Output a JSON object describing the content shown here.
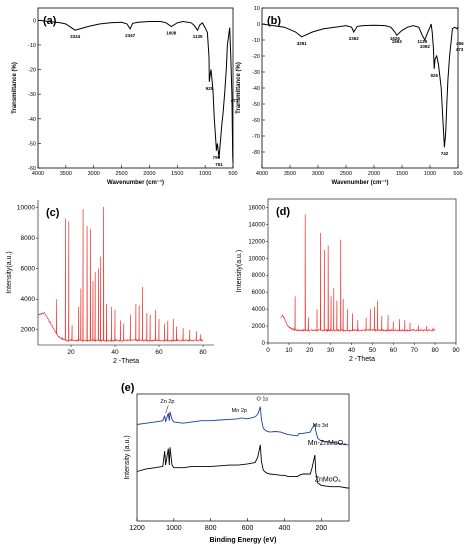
{
  "chart_data": [
    {
      "panel": "(a)",
      "type": "line",
      "xlabel": "Wavenumber (cm⁻¹)",
      "ylabel": "Transmittance (%)",
      "xlim": [
        4000,
        500
      ],
      "ylim": [
        -60,
        5
      ],
      "x_ticks": [
        "4000",
        "3500",
        "3000",
        "2500",
        "2000",
        "1500",
        "1000",
        "500"
      ],
      "y_ticks": [
        "0",
        "-10",
        "-20",
        "-30",
        "-40",
        "-50",
        "-60"
      ],
      "series": [
        {
          "color": "#000000",
          "x": [
            4000,
            3800,
            3600,
            3500,
            3400,
            3334,
            3250,
            3100,
            2900,
            2700,
            2500,
            2400,
            2347,
            2300,
            2200,
            2000,
            1800,
            1700,
            1608,
            1500,
            1400,
            1250,
            1200,
            1135,
            1100,
            1050,
            1000,
            960,
            930,
            925,
            910,
            895,
            860,
            835,
            800,
            799,
            780,
            760,
            751,
            740,
            720,
            700,
            680,
            650,
            620,
            600,
            560,
            540,
            520,
            505,
            500
          ],
          "y": [
            0,
            -0.5,
            -1,
            -1.5,
            -3,
            -4,
            -3.5,
            -2.5,
            -1.5,
            -1,
            -0.8,
            -1.5,
            -3.5,
            -1.2,
            -0.8,
            -0.5,
            -0.5,
            -1,
            -2.5,
            -1,
            -0.5,
            -1,
            -2,
            -4,
            -2,
            -1,
            -3,
            -5,
            -15,
            -25,
            -22,
            -20,
            -28,
            -40,
            -52,
            -53,
            -50,
            -54,
            -56,
            -53,
            -48,
            -42,
            -38,
            -30,
            -20,
            -10,
            -3,
            -15,
            -30,
            -55,
            -58
          ]
        }
      ],
      "annotations": [
        {
          "label": "3334",
          "x": 3334,
          "y": -4
        },
        {
          "label": "2347",
          "x": 2347,
          "y": -3.5
        },
        {
          "label": "1608",
          "x": 1608,
          "y": -2.5
        },
        {
          "label": "1135",
          "x": 1135,
          "y": -4
        },
        {
          "label": "925",
          "x": 925,
          "y": -25
        },
        {
          "label": "799",
          "x": 799,
          "y": -53
        },
        {
          "label": "751",
          "x": 751,
          "y": -56
        },
        {
          "label": "473",
          "x": 473,
          "y": -30
        }
      ]
    },
    {
      "panel": "(b)",
      "type": "line",
      "xlabel": "Wavenumber (cm⁻¹)",
      "ylabel": "Transmittance (%)",
      "xlim": [
        4000,
        500
      ],
      "ylim": [
        -90,
        10
      ],
      "x_ticks": [
        "4000",
        "3500",
        "3000",
        "2500",
        "2000",
        "1500",
        "1000",
        "500"
      ],
      "y_ticks": [
        "10",
        "0",
        "-10",
        "-20",
        "-30",
        "-40",
        "-50",
        "-60",
        "-70",
        "-80"
      ],
      "series": [
        {
          "color": "#000000",
          "x": [
            4000,
            3800,
            3600,
            3400,
            3291,
            3100,
            2900,
            2700,
            2500,
            2400,
            2362,
            2300,
            2200,
            2000,
            1800,
            1700,
            1626,
            1593,
            1500,
            1400,
            1300,
            1200,
            1139,
            1092,
            1050,
            1000,
            980,
            960,
            940,
            925,
            910,
            880,
            850,
            800,
            770,
            742,
            720,
            700,
            680,
            650,
            620,
            600,
            560,
            520,
            505,
            500
          ],
          "y": [
            0,
            -1,
            -2,
            -5,
            -8,
            -5,
            -3,
            -2,
            -1,
            -2,
            -5,
            -1.5,
            -1,
            -0.8,
            -1,
            -2,
            -5,
            -7,
            -4,
            -2,
            -1,
            -2,
            -7,
            -10,
            -6,
            -2,
            0,
            -5,
            -15,
            -28,
            -22,
            -20,
            -25,
            -40,
            -60,
            -77,
            -68,
            -50,
            -35,
            -20,
            -10,
            -3,
            -2,
            -3,
            -2,
            -2
          ]
        }
      ],
      "annotations": [
        {
          "label": "3291",
          "x": 3291,
          "y": -8
        },
        {
          "label": "2362",
          "x": 2362,
          "y": -5
        },
        {
          "label": "1626",
          "x": 1626,
          "y": -5
        },
        {
          "label": "1593",
          "x": 1593,
          "y": -7
        },
        {
          "label": "1139",
          "x": 1139,
          "y": -7
        },
        {
          "label": "1092",
          "x": 1092,
          "y": -10
        },
        {
          "label": "925",
          "x": 925,
          "y": -28
        },
        {
          "label": "742",
          "x": 742,
          "y": -77
        },
        {
          "label": "466",
          "x": 466,
          "y": -8
        },
        {
          "label": "473",
          "x": 473,
          "y": -12
        }
      ]
    },
    {
      "panel": "(c)",
      "type": "line",
      "xlabel": "2 -Theta",
      "ylabel": "Intensity(a.u.)",
      "xlim": [
        5,
        85
      ],
      "ylim": [
        1000,
        10500
      ],
      "x_ticks": [
        "20",
        "40",
        "60",
        "80"
      ],
      "y_ticks": [
        "2000",
        "4000",
        "6000",
        "8000",
        "10000"
      ],
      "series": [
        {
          "color": "#e8302c",
          "baseline_x": [
            5,
            8,
            10,
            12,
            14,
            16,
            18,
            22,
            26,
            30,
            35,
            40,
            50,
            60,
            70,
            80
          ],
          "baseline_y": [
            3000,
            3100,
            2600,
            2100,
            1600,
            1400,
            1300,
            1300,
            1300,
            1300,
            1300,
            1300,
            1300,
            1300,
            1300,
            1300
          ],
          "peaks": [
            {
              "x": 13.5,
              "y": 4000
            },
            {
              "x": 17.5,
              "y": 9300
            },
            {
              "x": 19.0,
              "y": 9100
            },
            {
              "x": 20.5,
              "y": 2300
            },
            {
              "x": 23.5,
              "y": 3500
            },
            {
              "x": 24.5,
              "y": 4700
            },
            {
              "x": 25.5,
              "y": 9900
            },
            {
              "x": 27.3,
              "y": 8800
            },
            {
              "x": 28.8,
              "y": 8600
            },
            {
              "x": 30.0,
              "y": 5200
            },
            {
              "x": 31.0,
              "y": 5800
            },
            {
              "x": 32.5,
              "y": 6000
            },
            {
              "x": 33.5,
              "y": 6800
            },
            {
              "x": 34.8,
              "y": 10050
            },
            {
              "x": 36.2,
              "y": 3700
            },
            {
              "x": 38.5,
              "y": 3500
            },
            {
              "x": 40.0,
              "y": 3300
            },
            {
              "x": 42.5,
              "y": 2600
            },
            {
              "x": 44.0,
              "y": 2400
            },
            {
              "x": 47.0,
              "y": 3000
            },
            {
              "x": 49.5,
              "y": 3700
            },
            {
              "x": 51.0,
              "y": 3600
            },
            {
              "x": 52.5,
              "y": 4800
            },
            {
              "x": 54.5,
              "y": 3100
            },
            {
              "x": 56.0,
              "y": 3000
            },
            {
              "x": 58.5,
              "y": 3300
            },
            {
              "x": 60.0,
              "y": 2700
            },
            {
              "x": 62.5,
              "y": 2400
            },
            {
              "x": 64.0,
              "y": 2600
            },
            {
              "x": 66.5,
              "y": 2700
            },
            {
              "x": 68.0,
              "y": 2200
            },
            {
              "x": 71.0,
              "y": 2100
            },
            {
              "x": 74.0,
              "y": 2000
            },
            {
              "x": 77.0,
              "y": 1900
            },
            {
              "x": 79.0,
              "y": 1700
            }
          ]
        }
      ]
    },
    {
      "panel": "(d)",
      "type": "line",
      "xlabel": "2 -Theta",
      "ylabel": "Intensity(a.u.)",
      "xlim": [
        0,
        90
      ],
      "ylim": [
        0,
        17000
      ],
      "x_ticks": [
        "0",
        "10",
        "20",
        "30",
        "40",
        "50",
        "60",
        "70",
        "80",
        "90"
      ],
      "y_ticks": [
        "0",
        "2000",
        "4000",
        "6000",
        "8000",
        "10000",
        "12000",
        "14000",
        "16000"
      ],
      "series": [
        {
          "color": "#e8302c",
          "baseline_x": [
            6,
            7,
            8,
            9,
            10,
            12,
            14,
            16,
            20,
            30,
            40,
            50,
            60,
            70,
            80
          ],
          "baseline_y": [
            3000,
            3300,
            2800,
            2200,
            1900,
            1600,
            1500,
            1500,
            1500,
            1500,
            1500,
            1500,
            1500,
            1500,
            1500
          ],
          "peaks": [
            {
              "x": 13.0,
              "y": 5500
            },
            {
              "x": 17.8,
              "y": 15200
            },
            {
              "x": 19.3,
              "y": 3000
            },
            {
              "x": 23.5,
              "y": 4000
            },
            {
              "x": 25.2,
              "y": 13000
            },
            {
              "x": 27.0,
              "y": 11000
            },
            {
              "x": 28.8,
              "y": 11500
            },
            {
              "x": 30.2,
              "y": 5500
            },
            {
              "x": 31.5,
              "y": 6500
            },
            {
              "x": 33.0,
              "y": 5000
            },
            {
              "x": 34.8,
              "y": 12200
            },
            {
              "x": 36.0,
              "y": 5200
            },
            {
              "x": 38.0,
              "y": 4000
            },
            {
              "x": 40.5,
              "y": 3500
            },
            {
              "x": 43.0,
              "y": 2700
            },
            {
              "x": 47.0,
              "y": 3000
            },
            {
              "x": 49.0,
              "y": 4000
            },
            {
              "x": 51.0,
              "y": 4300
            },
            {
              "x": 52.5,
              "y": 5000
            },
            {
              "x": 54.5,
              "y": 3200
            },
            {
              "x": 57.5,
              "y": 3300
            },
            {
              "x": 60.0,
              "y": 2500
            },
            {
              "x": 63.0,
              "y": 2800
            },
            {
              "x": 65.5,
              "y": 2700
            },
            {
              "x": 68.0,
              "y": 2400
            },
            {
              "x": 72.0,
              "y": 2100
            },
            {
              "x": 76.0,
              "y": 2000
            },
            {
              "x": 79.0,
              "y": 1800
            }
          ]
        }
      ]
    },
    {
      "panel": "(e)",
      "type": "line",
      "xlabel": "Binding Energy (eV)",
      "ylabel": "Intensity (a.u.)",
      "xlim": [
        1200,
        50
      ],
      "ylim": [
        0,
        100
      ],
      "x_ticks": [
        "1200",
        "1000",
        "800",
        "600",
        "400",
        "200"
      ],
      "annotations_text": [
        "Zn 2p",
        "Mn 2p",
        "O 1s",
        "Mo 3d"
      ],
      "series": [
        {
          "name": "Mn-ZnMoO₄",
          "color": "#1f3f9e",
          "x": [
            1200,
            1150,
            1100,
            1060,
            1050,
            1045,
            1030,
            1025,
            1021,
            1010,
            1000,
            950,
            900,
            850,
            800,
            750,
            700,
            650,
            640,
            630,
            600,
            560,
            545,
            540,
            531,
            525,
            515,
            500,
            480,
            450,
            420,
            400,
            380,
            330,
            320,
            300,
            260,
            250,
            235,
            230,
            220,
            200,
            150,
            100,
            60,
            50
          ],
          "y": [
            76,
            77,
            78,
            79,
            83,
            78,
            85,
            79,
            86,
            80,
            78,
            77,
            78,
            79,
            79,
            79.5,
            80,
            80.5,
            81,
            81,
            80.5,
            82,
            84,
            86,
            90,
            80,
            73,
            71,
            70,
            70.5,
            70,
            69,
            68,
            67,
            69,
            69,
            70,
            73,
            76,
            71,
            65,
            63,
            62,
            61,
            60,
            60
          ]
        },
        {
          "name": "ZnMoO₄",
          "color": "#000000",
          "x": [
            1200,
            1150,
            1100,
            1060,
            1050,
            1045,
            1030,
            1025,
            1021,
            1010,
            1000,
            950,
            900,
            850,
            800,
            750,
            700,
            650,
            600,
            560,
            545,
            540,
            531,
            525,
            515,
            500,
            480,
            450,
            420,
            400,
            380,
            330,
            320,
            300,
            260,
            250,
            235,
            230,
            220,
            200,
            150,
            100,
            60,
            50
          ],
          "y": [
            39,
            41,
            42,
            43,
            55,
            44,
            57,
            44,
            58,
            44,
            42,
            42,
            43,
            43,
            43,
            43.5,
            44,
            44,
            45,
            46,
            50,
            54,
            60,
            47,
            40,
            38,
            37,
            36.5,
            36,
            36,
            35,
            35,
            36,
            37,
            37,
            42,
            52,
            38,
            30,
            28,
            27,
            27,
            26,
            26
          ]
        }
      ],
      "legend": [
        "Mn-ZnMoO₄",
        "ZnMoO₄"
      ]
    }
  ],
  "labels": {
    "panel_a": "(a)",
    "panel_b": "(b)",
    "panel_c": "(c)",
    "panel_d": "(d)",
    "panel_e": "(e)"
  }
}
